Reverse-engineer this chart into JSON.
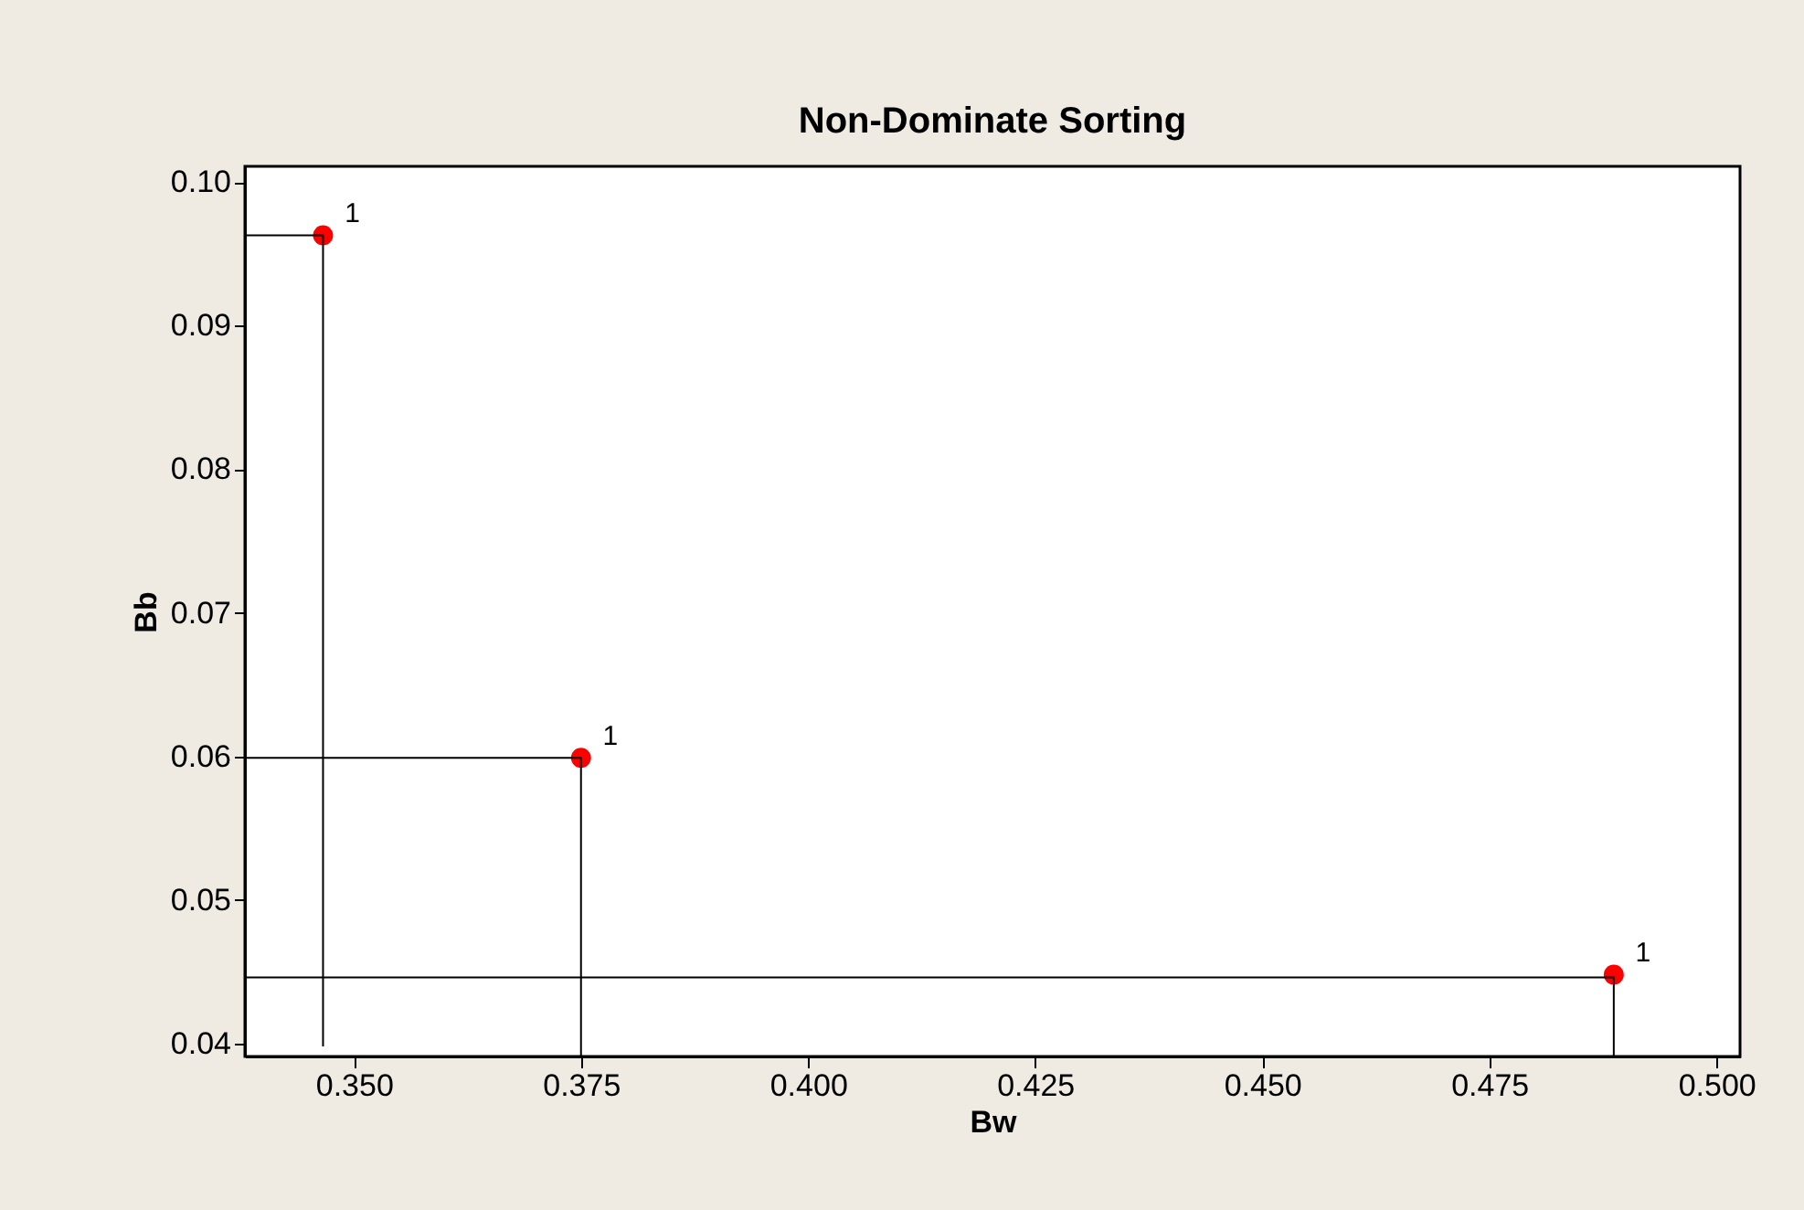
{
  "chart_data": {
    "type": "scatter",
    "title": "Non-Dominate Sorting",
    "xlabel": "Bw",
    "ylabel": "Bb",
    "x": [
      0.3466,
      0.375,
      0.4887
    ],
    "series": [
      {
        "color": "#ff0000",
        "marker": "circle",
        "values": [
          0.0963,
          0.0599,
          0.0448
        ]
      },
      {
        "type": "line",
        "color": "#000000",
        "x": [
          0.338,
          0.3466,
          0.3466
        ],
        "values": [
          0.0963,
          0.0963,
          0.0398
        ]
      },
      {
        "type": "line",
        "color": "#000000",
        "x": [
          0.338,
          0.375,
          0.375
        ],
        "values": [
          0.0599,
          0.0599,
          0.0391
        ]
      },
      {
        "type": "line",
        "color": "#000000",
        "x": [
          0.338,
          0.4887,
          0.4887
        ],
        "values": [
          0.0446,
          0.0446,
          0.0391
        ]
      }
    ],
    "annotations": [
      {
        "text": "1",
        "x": 0.3466,
        "y": 0.0963
      },
      {
        "text": "1",
        "x": 0.375,
        "y": 0.0599
      },
      {
        "text": "1",
        "x": 0.4887,
        "y": 0.0448
      }
    ],
    "xlim": [
      0.338,
      0.5026
    ],
    "xticks": [
      {
        "value": 0.35,
        "label": "0.350"
      },
      {
        "value": 0.375,
        "label": "0.375"
      },
      {
        "value": 0.4,
        "label": "0.400"
      },
      {
        "value": 0.425,
        "label": "0.425"
      },
      {
        "value": 0.45,
        "label": "0.450"
      },
      {
        "value": 0.475,
        "label": "0.475"
      },
      {
        "value": 0.5,
        "label": "0.500"
      }
    ],
    "ylim": [
      0.0391,
      0.1011
    ],
    "yticks": [
      {
        "value": 0.04,
        "label": "0.04"
      },
      {
        "value": 0.05,
        "label": "0.05"
      },
      {
        "value": 0.06,
        "label": "0.06"
      },
      {
        "value": 0.07,
        "label": "0.07"
      },
      {
        "value": 0.08,
        "label": "0.08"
      },
      {
        "value": 0.09,
        "label": "0.09"
      },
      {
        "value": 0.1,
        "label": "0.10"
      }
    ],
    "line_style": "solid",
    "grid": false,
    "legend": false
  }
}
